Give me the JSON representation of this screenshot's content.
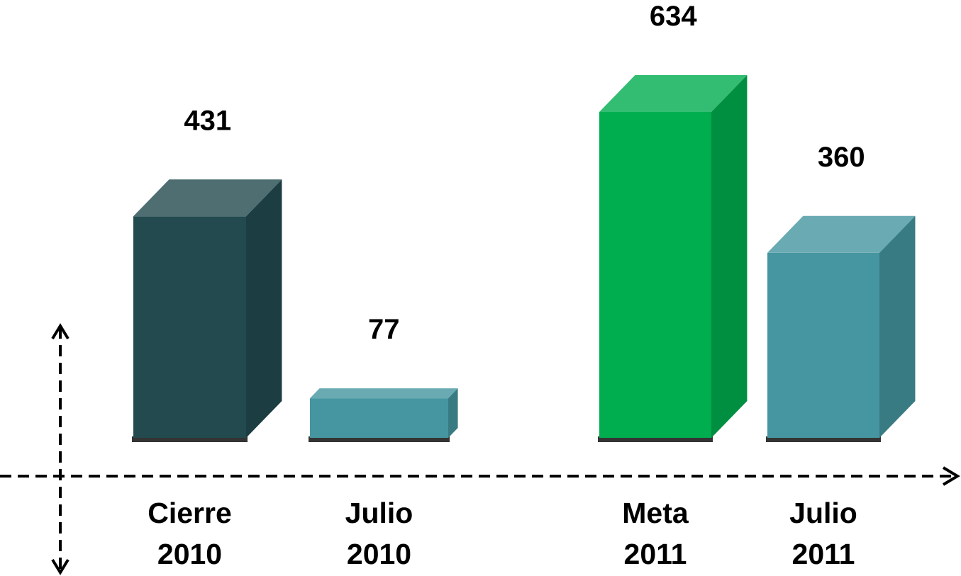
{
  "chart_data": {
    "type": "bar3d",
    "categories": [
      "Cierre\n2010",
      "Julio\n2010",
      "Meta\n2011",
      "Julio\n2011"
    ],
    "values": [
      431,
      77,
      634,
      360
    ],
    "colors": [
      "#224a4f",
      "#4596a0",
      "#00ad4f",
      "#4596a0"
    ]
  }
}
